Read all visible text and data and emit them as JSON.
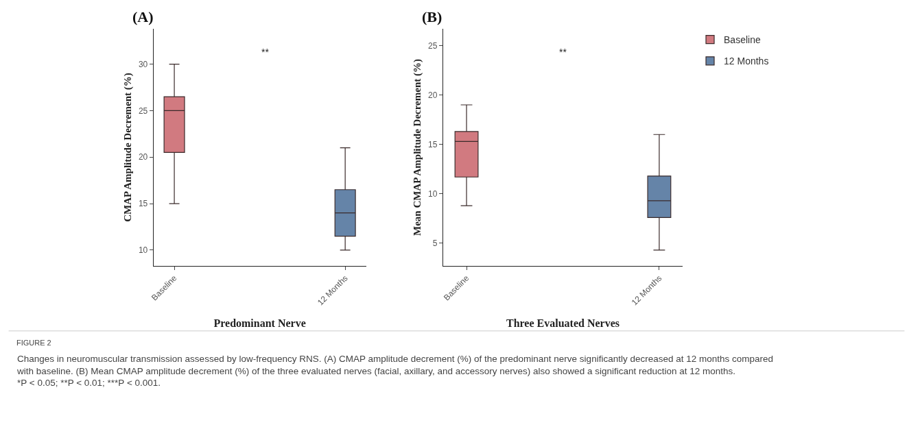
{
  "chart_data": [
    {
      "type": "box",
      "title": "(A)",
      "xlabel": "Predominant Nerve",
      "ylabel": "CMAP Amplitude Decrement (%)",
      "categories": [
        "Baseline",
        "12 Months"
      ],
      "ylim": [
        8.3,
        33.8
      ],
      "yticks": [
        10,
        15,
        20,
        25,
        30
      ],
      "series": [
        {
          "color": "#c9636a",
          "boxes": [
            {
              "low": 15,
              "q1": 20.5,
              "median": 25,
              "q3": 26.5,
              "high": 30
            },
            null
          ]
        },
        {
          "color": "#4a6e99",
          "boxes": [
            null,
            {
              "low": 10,
              "q1": 11.5,
              "median": 14,
              "q3": 16.5,
              "high": 21
            }
          ]
        }
      ],
      "annotations": [
        "**",
        "FIGURE 2",
        "Changes in neuromuscular transmission assessed by low-frequency RNS. (A) CMAP amplitude decrement (%) of the predominant nerve significantly decreased at 12 months compared with baseline. (B) Mean CMAP amplitude decrement (%) of the three evaluated nerves (facial, axillary, and accessory nerves) also showed a significant reduction at 12 months. *P < 0.05; **P < 0.01; ***P < 0.001."
      ]
    },
    {
      "type": "box",
      "title": "(B)",
      "xlabel": "Three Evaluated Nerves",
      "ylabel": "Mean CMAP Amplitude Decrement (%)",
      "categories": [
        "Baseline",
        "12 Months"
      ],
      "ylim": [
        2.7,
        26.7
      ],
      "yticks": [
        5,
        10,
        15,
        20,
        25
      ],
      "legend": "right",
      "series": [
        {
          "name": "Baseline",
          "color": "#c9636a",
          "boxes": [
            {
              "low": 8.8,
              "q1": 11.7,
              "median": 15.3,
              "q3": 16.3,
              "high": 19
            },
            null
          ]
        },
        {
          "name": "12 Months",
          "color": "#4a6e99",
          "boxes": [
            null,
            {
              "low": 4.3,
              "q1": 7.6,
              "median": 9.3,
              "q3": 11.8,
              "high": 16
            }
          ]
        }
      ],
      "annotations": [
        "**"
      ]
    }
  ]
}
